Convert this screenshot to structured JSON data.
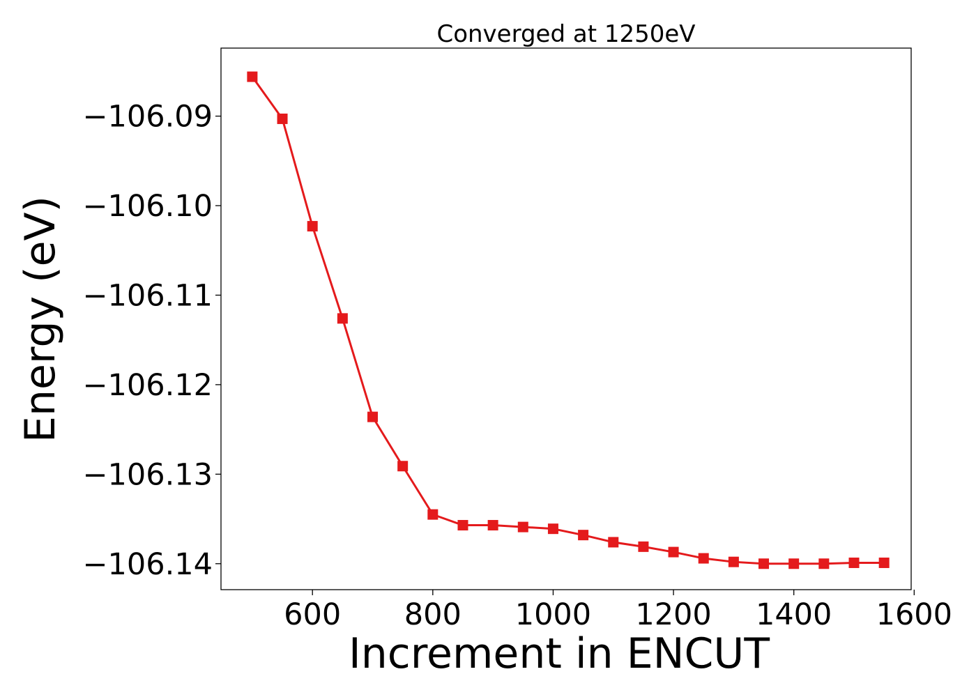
{
  "chart_data": {
    "type": "line",
    "title": "Converged at 1250eV",
    "xlabel": "Increment in ENCUT",
    "ylabel": "Energy (eV)",
    "xlim": [
      448,
      1595
    ],
    "ylim": [
      -106.1429,
      -106.0824
    ],
    "xticks": [
      600,
      800,
      1000,
      1200,
      1400,
      1600
    ],
    "xtick_labels": [
      "600",
      "800",
      "1000",
      "1200",
      "1400",
      "1600"
    ],
    "yticks": [
      -106.09,
      -106.1,
      -106.11,
      -106.12,
      -106.13,
      -106.14
    ],
    "ytick_labels": [
      "−106.09",
      "−106.10",
      "−106.11",
      "−106.12",
      "−106.13",
      "−106.14"
    ],
    "grid": false,
    "legend": false,
    "series": [
      {
        "color": "#e41a1c",
        "marker": "square",
        "x": [
          500,
          550,
          600,
          650,
          700,
          750,
          800,
          850,
          900,
          950,
          1000,
          1050,
          1100,
          1150,
          1200,
          1250,
          1300,
          1350,
          1400,
          1450,
          1500,
          1550
        ],
        "y": [
          -106.0856,
          -106.0903,
          -106.1023,
          -106.1126,
          -106.1236,
          -106.1291,
          -106.1345,
          -106.1357,
          -106.1357,
          -106.1359,
          -106.1361,
          -106.1368,
          -106.1376,
          -106.1381,
          -106.1387,
          -106.1394,
          -106.1398,
          -106.14,
          -106.14,
          -106.14,
          -106.1399,
          -106.1399
        ]
      }
    ]
  }
}
